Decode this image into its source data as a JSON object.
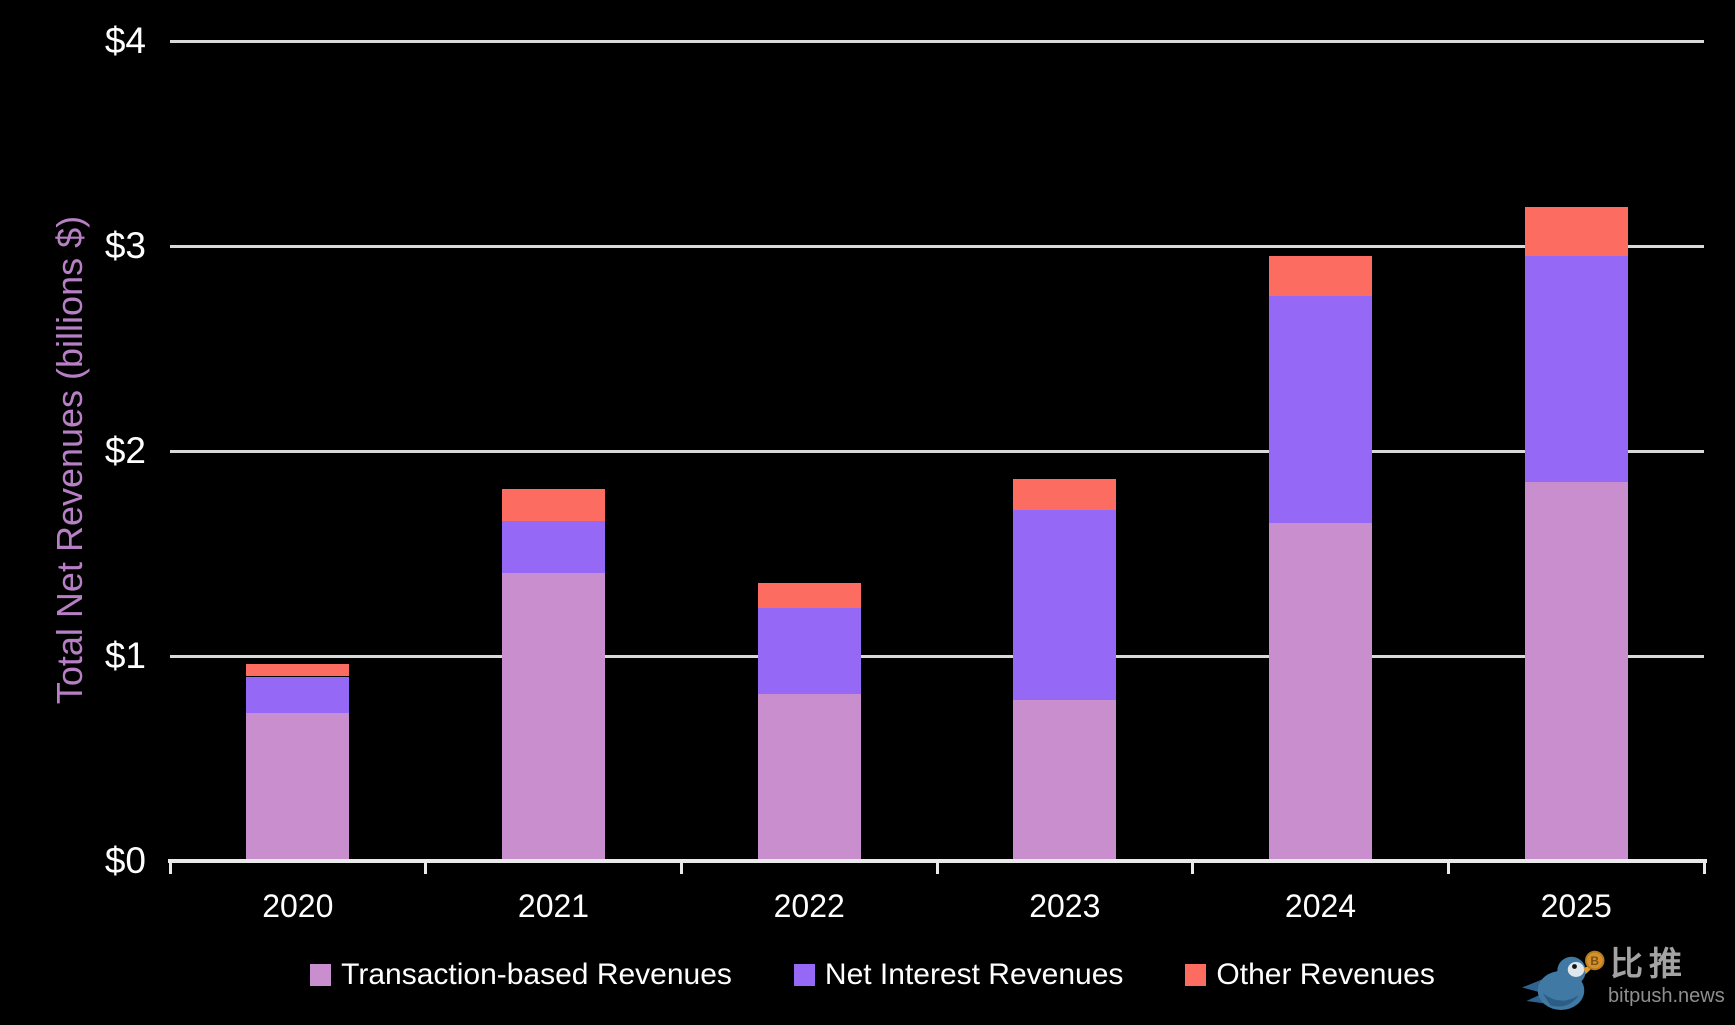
{
  "chart_data": {
    "type": "bar",
    "stacked": true,
    "title": "",
    "xlabel": "",
    "ylabel": "Total Net Revenues (billions $)",
    "categories": [
      "2020",
      "2021",
      "2022",
      "2023",
      "2024",
      "2025"
    ],
    "series": [
      {
        "name": "Transaction-based Revenues",
        "color": "#c98ecd",
        "values": [
          0.72,
          1.403,
          0.814,
          0.785,
          1.647,
          1.85
        ]
      },
      {
        "name": "Net Interest Revenues",
        "color": "#9568f5",
        "values": [
          0.18,
          0.257,
          0.422,
          0.929,
          1.109,
          1.1
        ]
      },
      {
        "name": "Other Revenues",
        "color": "#fc6c60",
        "values": [
          0.06,
          0.155,
          0.122,
          0.151,
          0.195,
          0.24
        ]
      }
    ],
    "totals": [
      0.96,
      1.815,
      1.358,
      1.865,
      2.951,
      3.19
    ],
    "ylim": [
      0,
      4
    ],
    "yticks": [
      {
        "value": 4,
        "label": "$4"
      },
      {
        "value": 3,
        "label": "$3"
      },
      {
        "value": 2,
        "label": "$2"
      },
      {
        "value": 1,
        "label": "$1"
      },
      {
        "value": 0,
        "label": "$0"
      }
    ],
    "grid": true,
    "legend_position": "bottom",
    "colors": {
      "background": "#000000",
      "text": "#ffffff",
      "gridline": "#d9d9d9",
      "axis": "#e9e9e9",
      "ylabel": "#b77fc4"
    }
  },
  "watermark": {
    "brand_cn": "比推",
    "brand_site": "bitpush.news"
  }
}
